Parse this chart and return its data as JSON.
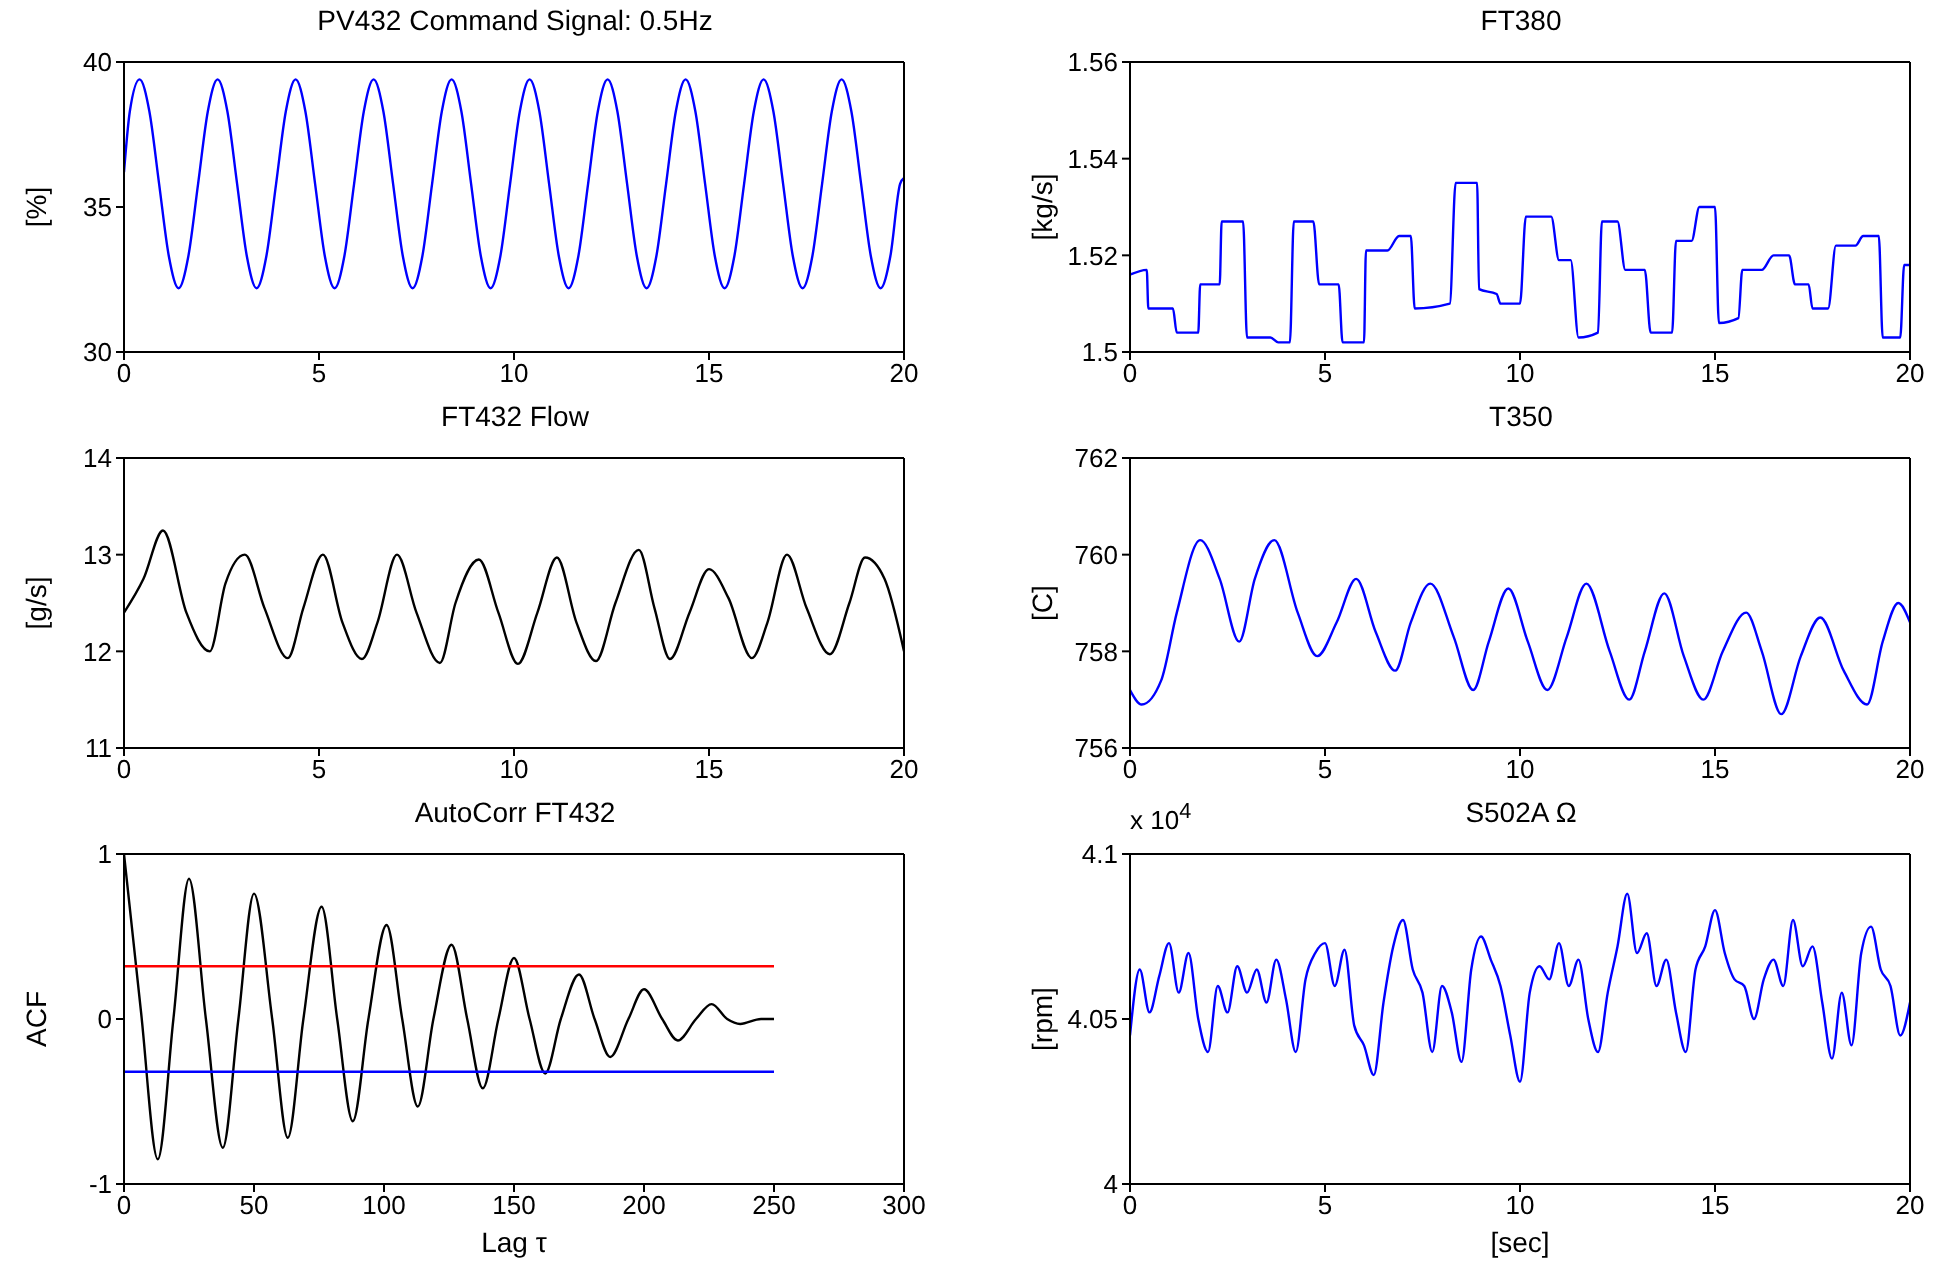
{
  "chart_data": [
    {
      "type": "line",
      "title": "PV432 Command Signal: 0.5Hz",
      "ylabel": "[%]",
      "xlim": [
        0,
        20
      ],
      "xticks": [
        0,
        5,
        10,
        15,
        20
      ],
      "ylim": [
        30,
        40
      ],
      "yticks": [
        30,
        35,
        40
      ],
      "x": [
        0,
        0.15,
        0.4,
        0.65,
        0.9,
        1.15,
        1.4,
        1.65,
        1.9,
        2.15,
        2.4,
        2.65,
        2.9,
        3.15,
        3.4,
        3.65,
        3.9,
        4.15,
        4.4,
        4.65,
        4.9,
        5.15,
        5.4,
        5.65,
        5.9,
        6.15,
        6.4,
        6.65,
        6.9,
        7.15,
        7.4,
        7.65,
        7.9,
        8.15,
        8.4,
        8.65,
        8.9,
        9.15,
        9.4,
        9.65,
        9.9,
        10.15,
        10.4,
        10.65,
        10.9,
        11.15,
        11.4,
        11.65,
        11.9,
        12.15,
        12.4,
        12.65,
        12.9,
        13.15,
        13.4,
        13.65,
        13.9,
        14.15,
        14.4,
        14.65,
        14.9,
        15.15,
        15.4,
        15.65,
        15.9,
        16.15,
        16.4,
        16.65,
        16.9,
        17.15,
        17.4,
        17.65,
        17.9,
        18.15,
        18.4,
        18.65,
        18.9,
        19.15,
        19.4,
        19.65,
        19.9,
        20
      ],
      "series": [
        {
          "color": "#0000ff",
          "values": [
            36.2,
            38.3,
            39.4,
            38.3,
            35.8,
            33.3,
            32.2,
            33.3,
            35.8,
            38.3,
            39.4,
            38.3,
            35.8,
            33.3,
            32.2,
            33.3,
            35.8,
            38.3,
            39.4,
            38.3,
            35.8,
            33.3,
            32.2,
            33.3,
            35.8,
            38.3,
            39.4,
            38.3,
            35.8,
            33.3,
            32.2,
            33.3,
            35.8,
            38.3,
            39.4,
            38.3,
            35.8,
            33.3,
            32.2,
            33.3,
            35.8,
            38.3,
            39.4,
            38.3,
            35.8,
            33.3,
            32.2,
            33.3,
            35.8,
            38.3,
            39.4,
            38.3,
            35.8,
            33.3,
            32.2,
            33.3,
            35.8,
            38.3,
            39.4,
            38.3,
            35.8,
            33.3,
            32.2,
            33.3,
            35.8,
            38.3,
            39.4,
            38.3,
            35.8,
            33.3,
            32.2,
            33.3,
            35.8,
            38.3,
            39.4,
            38.3,
            35.8,
            33.3,
            32.2,
            33.3,
            35.8,
            36.0
          ]
        }
      ]
    },
    {
      "type": "line",
      "title": "FT380",
      "ylabel": "[kg/s]",
      "xlim": [
        0,
        20
      ],
      "xticks": [
        0,
        5,
        10,
        15,
        20
      ],
      "ylim": [
        1.5,
        1.56
      ],
      "yticks": [
        1.5,
        1.52,
        1.54,
        1.56
      ],
      "x": [
        0,
        0.43,
        0.47,
        1.1,
        1.2,
        1.75,
        1.8,
        2.3,
        2.35,
        2.9,
        3.0,
        3.6,
        3.8,
        4.1,
        4.2,
        4.7,
        4.85,
        5.35,
        5.45,
        6.0,
        6.05,
        6.6,
        6.9,
        7.2,
        7.3,
        8.2,
        8.35,
        8.9,
        8.95,
        9.4,
        9.5,
        10.0,
        10.15,
        10.8,
        11.0,
        11.3,
        11.5,
        12.0,
        12.1,
        12.5,
        12.7,
        13.2,
        13.35,
        13.9,
        14.0,
        14.4,
        14.6,
        15.0,
        15.1,
        15.6,
        15.7,
        16.2,
        16.5,
        16.9,
        17.05,
        17.4,
        17.5,
        17.9,
        18.1,
        18.6,
        18.8,
        19.2,
        19.3,
        19.75,
        19.85,
        20
      ],
      "series": [
        {
          "color": "#0000ff",
          "values": [
            1.516,
            1.517,
            1.509,
            1.509,
            1.504,
            1.504,
            1.514,
            1.514,
            1.527,
            1.527,
            1.503,
            1.503,
            1.502,
            1.502,
            1.527,
            1.527,
            1.514,
            1.514,
            1.502,
            1.502,
            1.521,
            1.521,
            1.524,
            1.524,
            1.509,
            1.51,
            1.535,
            1.535,
            1.513,
            1.512,
            1.51,
            1.51,
            1.528,
            1.528,
            1.519,
            1.519,
            1.503,
            1.504,
            1.527,
            1.527,
            1.517,
            1.517,
            1.504,
            1.504,
            1.523,
            1.523,
            1.53,
            1.53,
            1.506,
            1.507,
            1.517,
            1.517,
            1.52,
            1.52,
            1.514,
            1.514,
            1.509,
            1.509,
            1.522,
            1.522,
            1.524,
            1.524,
            1.503,
            1.503,
            1.518,
            1.518
          ]
        }
      ]
    },
    {
      "type": "line",
      "title": "FT432 Flow",
      "ylabel": "[g/s]",
      "xlim": [
        0,
        20
      ],
      "xticks": [
        0,
        5,
        10,
        15,
        20
      ],
      "ylim": [
        11,
        14
      ],
      "yticks": [
        11,
        12,
        13,
        14
      ],
      "x": [
        0,
        0.5,
        1.0,
        1.6,
        2.2,
        2.6,
        3.1,
        3.6,
        4.2,
        4.6,
        5.1,
        5.6,
        6.1,
        6.5,
        7.0,
        7.5,
        8.1,
        8.5,
        9.1,
        9.6,
        10.1,
        10.6,
        11.1,
        11.6,
        12.1,
        12.6,
        13.2,
        13.6,
        14.0,
        14.5,
        15.0,
        15.5,
        16.1,
        16.5,
        17.0,
        17.5,
        18.1,
        18.6,
        19.0,
        19.5,
        20
      ],
      "series": [
        {
          "color": "#000000",
          "values": [
            12.4,
            12.75,
            13.25,
            12.4,
            12.0,
            12.7,
            13.0,
            12.45,
            11.93,
            12.45,
            13.0,
            12.3,
            11.92,
            12.3,
            13.0,
            12.4,
            11.88,
            12.5,
            12.95,
            12.4,
            11.87,
            12.4,
            12.97,
            12.3,
            11.9,
            12.5,
            13.05,
            12.45,
            11.92,
            12.4,
            12.85,
            12.55,
            11.93,
            12.3,
            13.0,
            12.45,
            11.97,
            12.5,
            12.97,
            12.75,
            12.0
          ]
        }
      ]
    },
    {
      "type": "line",
      "title": "T350",
      "ylabel": "[C]",
      "xlim": [
        0,
        20
      ],
      "xticks": [
        0,
        5,
        10,
        15,
        20
      ],
      "ylim": [
        756,
        762
      ],
      "yticks": [
        756,
        758,
        760,
        762
      ],
      "x": [
        0,
        0.3,
        0.8,
        1.2,
        1.8,
        2.3,
        2.8,
        3.2,
        3.7,
        4.3,
        4.8,
        5.3,
        5.8,
        6.3,
        6.8,
        7.2,
        7.7,
        8.3,
        8.8,
        9.2,
        9.7,
        10.2,
        10.7,
        11.2,
        11.7,
        12.3,
        12.8,
        13.2,
        13.7,
        14.2,
        14.7,
        15.2,
        15.8,
        16.2,
        16.7,
        17.2,
        17.7,
        18.3,
        18.9,
        19.3,
        19.7,
        20
      ],
      "series": [
        {
          "color": "#0000ff",
          "values": [
            757.2,
            756.9,
            757.4,
            758.8,
            760.3,
            759.5,
            758.2,
            759.5,
            760.3,
            758.8,
            757.9,
            758.6,
            759.5,
            758.4,
            757.6,
            758.6,
            759.4,
            758.3,
            757.2,
            758.2,
            759.3,
            758.2,
            757.2,
            758.3,
            759.4,
            758.0,
            757.0,
            758.0,
            759.2,
            757.9,
            757.0,
            758.0,
            758.8,
            758.0,
            756.7,
            757.9,
            758.7,
            757.6,
            756.9,
            758.2,
            759.0,
            758.6
          ]
        }
      ]
    },
    {
      "type": "line",
      "title": "AutoCorr FT432",
      "xlabel": "Lag τ",
      "ylabel": "ACF",
      "xlim": [
        0,
        300
      ],
      "xticks": [
        0,
        50,
        100,
        150,
        200,
        250,
        300
      ],
      "ylim": [
        -1,
        1
      ],
      "yticks": [
        -1,
        0,
        1
      ],
      "series": [
        {
          "color": "#000000",
          "x": [
            0,
            6.5,
            13,
            19,
            25,
            31.5,
            38,
            44,
            50,
            57,
            63,
            69,
            76,
            82,
            88,
            94,
            101,
            107,
            113,
            119,
            126,
            132,
            138,
            144,
            150,
            156,
            162,
            168,
            175,
            181,
            187,
            194,
            200,
            207,
            213,
            220,
            226,
            232,
            237,
            245,
            250
          ],
          "values": [
            1,
            0.05,
            -0.85,
            0,
            0.85,
            0,
            -0.78,
            0,
            0.76,
            0,
            -0.72,
            0,
            0.68,
            0,
            -0.62,
            0,
            0.57,
            0,
            -0.53,
            0,
            0.45,
            0,
            -0.42,
            0,
            0.37,
            0,
            -0.33,
            0,
            0.27,
            0,
            -0.23,
            0,
            0.18,
            0,
            -0.13,
            0,
            0.09,
            0,
            -0.03,
            0,
            0
          ]
        },
        {
          "color": "#ff0000",
          "x": [
            0,
            250
          ],
          "values": [
            0.32,
            0.32
          ]
        },
        {
          "color": "#0000ff",
          "x": [
            0,
            250
          ],
          "values": [
            -0.32,
            -0.32
          ]
        }
      ]
    },
    {
      "type": "line",
      "title": "S502A Ω",
      "xlabel": "[sec]",
      "ylabel": "[rpm]",
      "annotations": [
        "x 10$^{4}$"
      ],
      "xlim": [
        0,
        20
      ],
      "xticks": [
        0,
        5,
        10,
        15,
        20
      ],
      "ylim": [
        4,
        4.1
      ],
      "yticks": [
        4,
        4.05,
        4.1
      ],
      "x": [
        0,
        0.25,
        0.5,
        0.75,
        1,
        1.25,
        1.5,
        1.75,
        2,
        2.25,
        2.5,
        2.75,
        3,
        3.25,
        3.5,
        3.75,
        4,
        4.25,
        4.5,
        4.75,
        5,
        5.25,
        5.5,
        5.75,
        6,
        6.25,
        6.5,
        6.75,
        7,
        7.25,
        7.5,
        7.75,
        8,
        8.25,
        8.5,
        8.75,
        9,
        9.25,
        9.5,
        9.75,
        10,
        10.25,
        10.5,
        10.75,
        11,
        11.25,
        11.5,
        11.75,
        12,
        12.25,
        12.5,
        12.75,
        13,
        13.25,
        13.5,
        13.75,
        14,
        14.25,
        14.5,
        14.75,
        15,
        15.25,
        15.5,
        15.75,
        16,
        16.25,
        16.5,
        16.75,
        17,
        17.25,
        17.5,
        17.75,
        18,
        18.25,
        18.5,
        18.75,
        19,
        19.25,
        19.5,
        19.75,
        20
      ],
      "series": [
        {
          "color": "#0000ff",
          "values": [
            4.045,
            4.065,
            4.052,
            4.063,
            4.073,
            4.058,
            4.07,
            4.05,
            4.04,
            4.06,
            4.052,
            4.066,
            4.058,
            4.065,
            4.055,
            4.068,
            4.056,
            4.04,
            4.062,
            4.07,
            4.073,
            4.06,
            4.071,
            4.048,
            4.042,
            4.033,
            4.055,
            4.072,
            4.08,
            4.065,
            4.058,
            4.04,
            4.06,
            4.052,
            4.037,
            4.065,
            4.075,
            4.068,
            4.06,
            4.045,
            4.031,
            4.058,
            4.066,
            4.062,
            4.073,
            4.06,
            4.068,
            4.05,
            4.04,
            4.058,
            4.072,
            4.088,
            4.07,
            4.076,
            4.06,
            4.068,
            4.052,
            4.04,
            4.065,
            4.072,
            4.083,
            4.07,
            4.062,
            4.06,
            4.05,
            4.062,
            4.068,
            4.06,
            4.08,
            4.066,
            4.072,
            4.055,
            4.038,
            4.058,
            4.042,
            4.07,
            4.078,
            4.065,
            4.06,
            4.045,
            4.055
          ]
        }
      ]
    }
  ]
}
